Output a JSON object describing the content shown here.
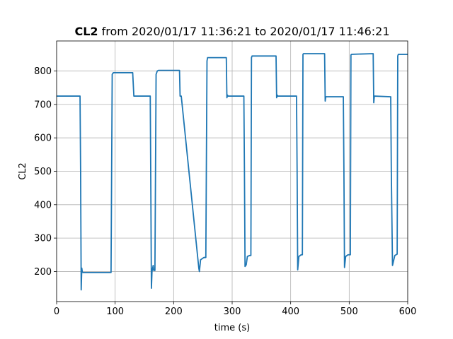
{
  "chart_data": {
    "type": "line",
    "title_bold": "CL2",
    "title_rest": " from 2020/01/17 11:36:21 to 2020/01/17 11:46:21",
    "xlabel": "time (s)",
    "ylabel": "CL2",
    "xlim": [
      0,
      600
    ],
    "ylim": [
      110,
      890
    ],
    "xticks": [
      0,
      100,
      200,
      300,
      400,
      500,
      600
    ],
    "yticks": [
      200,
      300,
      400,
      500,
      600,
      700,
      800
    ],
    "grid": true,
    "series": [
      {
        "color": "#1f77b4",
        "x": [
          0,
          40,
          41,
          42,
          43,
          44,
          45,
          93,
          95,
          97,
          130,
          132,
          160,
          161,
          162,
          163,
          165,
          166,
          168,
          170,
          172,
          174,
          210,
          211,
          213,
          243,
          244,
          246,
          250,
          252,
          255,
          257,
          258,
          259,
          290,
          291,
          292,
          293,
          320,
          321,
          322,
          324,
          326,
          330,
          332,
          333,
          334,
          375,
          376,
          377,
          378,
          410,
          411,
          412,
          414,
          418,
          420,
          421,
          422,
          458,
          459,
          460,
          461,
          490,
          491,
          492,
          494,
          498,
          502,
          503,
          504,
          540,
          541,
          542,
          543,
          570,
          571,
          572,
          574,
          578,
          582,
          583,
          584,
          600
        ],
        "y": [
          725,
          725,
          500,
          145,
          210,
          198,
          197,
          197,
          790,
          795,
          795,
          725,
          725,
          450,
          150,
          200,
          218,
          203,
          203,
          790,
          800,
          802,
          802,
          725,
          725,
          210,
          200,
          235,
          240,
          242,
          242,
          830,
          840,
          840,
          840,
          720,
          728,
          725,
          725,
          500,
          215,
          220,
          245,
          248,
          248,
          840,
          845,
          845,
          720,
          728,
          725,
          725,
          500,
          205,
          245,
          250,
          250,
          850,
          852,
          852,
          710,
          723,
          723,
          723,
          500,
          212,
          245,
          250,
          250,
          848,
          850,
          852,
          852,
          705,
          725,
          723,
          723,
          500,
          218,
          248,
          252,
          845,
          850,
          850
        ]
      }
    ]
  }
}
